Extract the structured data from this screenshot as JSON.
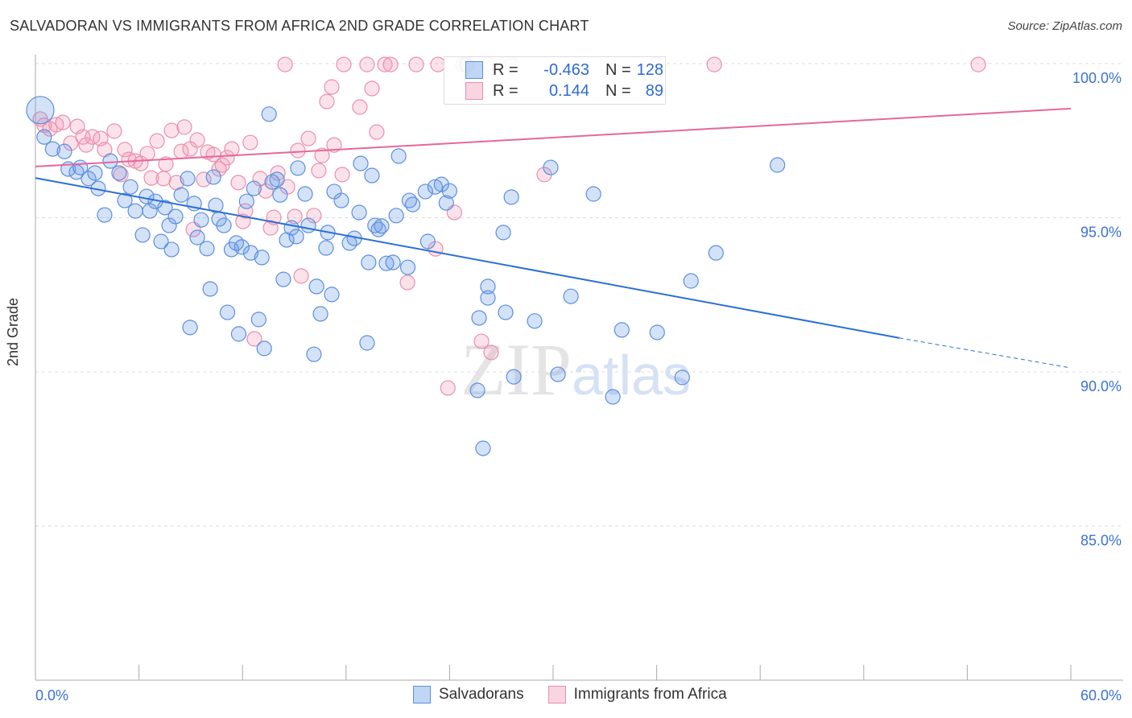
{
  "chart_data": {
    "type": "scatter",
    "title": "SALVADORAN VS IMMIGRANTS FROM AFRICA 2ND GRADE CORRELATION CHART",
    "source": "Source: ZipAtlas.com",
    "xlabel": "",
    "ylabel": "2nd Grade",
    "xlim": [
      0,
      60
    ],
    "ylim": [
      80,
      100.5
    ],
    "x_tick_labels": [
      "0.0%",
      "60.0%"
    ],
    "y_ticks": [
      100,
      95,
      90,
      85
    ],
    "y_tick_labels": [
      "100.0%",
      "95.0%",
      "90.0%",
      "85.0%"
    ],
    "grid": true,
    "watermark": "ZIPatlas",
    "legend": {
      "placement": "top-center",
      "entries": [
        {
          "r_label": "R =",
          "r": "-0.463",
          "n_label": "N =",
          "n": "128"
        },
        {
          "r_label": "R =",
          "r": "0.144",
          "n_label": "N =",
          "n": "89"
        }
      ]
    },
    "colors": {
      "blue": "#5b8fde",
      "pink": "#ea8fac",
      "blue_line": "#2a6fd6",
      "pink_line": "#e8669a",
      "axis_text": "#3a72d4"
    },
    "series": [
      {
        "name": "Salvadorans",
        "trend": {
          "x": [
            0,
            50.07,
            60
          ],
          "y": [
            96.29,
            91.1,
            90.13
          ]
        },
        "points": [
          [
            0.28,
            98.49
          ],
          [
            0.51,
            97.62
          ],
          [
            1.0,
            97.23
          ],
          [
            1.68,
            97.15
          ],
          [
            1.9,
            96.58
          ],
          [
            2.38,
            96.48
          ],
          [
            2.6,
            96.63
          ],
          [
            3.08,
            96.27
          ],
          [
            3.45,
            96.45
          ],
          [
            3.64,
            95.95
          ],
          [
            4.01,
            95.09
          ],
          [
            4.34,
            96.84
          ],
          [
            4.85,
            96.45
          ],
          [
            5.18,
            95.56
          ],
          [
            5.51,
            96.0
          ],
          [
            5.79,
            95.22
          ],
          [
            6.21,
            94.44
          ],
          [
            6.44,
            95.69
          ],
          [
            6.63,
            95.22
          ],
          [
            6.95,
            95.53
          ],
          [
            7.28,
            94.23
          ],
          [
            7.51,
            95.33
          ],
          [
            7.75,
            94.75
          ],
          [
            7.89,
            93.97
          ],
          [
            8.12,
            95.04
          ],
          [
            8.45,
            95.74
          ],
          [
            8.82,
            96.27
          ],
          [
            8.96,
            91.44
          ],
          [
            9.2,
            95.46
          ],
          [
            9.38,
            94.36
          ],
          [
            9.61,
            94.93
          ],
          [
            9.94,
            94.0
          ],
          [
            10.13,
            92.69
          ],
          [
            10.32,
            96.32
          ],
          [
            10.45,
            95.4
          ],
          [
            10.64,
            94.96
          ],
          [
            10.92,
            94.75
          ],
          [
            11.13,
            91.93
          ],
          [
            11.36,
            93.97
          ],
          [
            11.64,
            94.18
          ],
          [
            11.78,
            91.23
          ],
          [
            11.96,
            94.05
          ],
          [
            12.24,
            95.53
          ],
          [
            12.48,
            93.86
          ],
          [
            12.66,
            95.95
          ],
          [
            12.94,
            91.7
          ],
          [
            13.12,
            93.71
          ],
          [
            13.26,
            90.76
          ],
          [
            13.54,
            98.36
          ],
          [
            13.72,
            96.16
          ],
          [
            14.0,
            96.24
          ],
          [
            14.18,
            95.74
          ],
          [
            14.37,
            93.0
          ],
          [
            14.56,
            94.28
          ],
          [
            14.84,
            94.67
          ],
          [
            15.12,
            94.39
          ],
          [
            15.21,
            96.61
          ],
          [
            15.63,
            95.77
          ],
          [
            15.82,
            94.75
          ],
          [
            16.14,
            90.57
          ],
          [
            16.29,
            92.77
          ],
          [
            16.52,
            91.88
          ],
          [
            16.84,
            94.02
          ],
          [
            16.94,
            94.52
          ],
          [
            17.17,
            92.51
          ],
          [
            17.31,
            95.85
          ],
          [
            17.73,
            95.56
          ],
          [
            18.2,
            94.18
          ],
          [
            18.48,
            94.33
          ],
          [
            18.76,
            95.17
          ],
          [
            18.85,
            96.76
          ],
          [
            19.22,
            90.94
          ],
          [
            19.31,
            93.55
          ],
          [
            19.5,
            96.37
          ],
          [
            19.68,
            94.75
          ],
          [
            19.88,
            94.62
          ],
          [
            20.06,
            94.73
          ],
          [
            20.34,
            93.52
          ],
          [
            20.72,
            93.55
          ],
          [
            20.91,
            95.07
          ],
          [
            21.05,
            97.0
          ],
          [
            21.58,
            93.39
          ],
          [
            21.67,
            95.56
          ],
          [
            21.86,
            95.43
          ],
          [
            22.6,
            95.85
          ],
          [
            22.74,
            94.23
          ],
          [
            23.16,
            96.0
          ],
          [
            23.53,
            96.08
          ],
          [
            23.81,
            95.48
          ],
          [
            24.0,
            95.87
          ],
          [
            25.0,
            99.97
          ],
          [
            25.62,
            89.4
          ],
          [
            25.71,
            91.75
          ],
          [
            25.94,
            87.52
          ],
          [
            26.22,
            92.77
          ],
          [
            26.22,
            92.4
          ],
          [
            27.11,
            94.52
          ],
          [
            27.25,
            91.93
          ],
          [
            27.58,
            95.67
          ],
          [
            27.72,
            89.84
          ],
          [
            28.93,
            91.65
          ],
          [
            29.86,
            96.63
          ],
          [
            30.28,
            89.92
          ],
          [
            31.03,
            92.45
          ],
          [
            32.34,
            95.77
          ],
          [
            33.46,
            89.19
          ],
          [
            33.98,
            91.36
          ],
          [
            36.03,
            91.28
          ],
          [
            37.48,
            89.82
          ],
          [
            37.99,
            92.95
          ],
          [
            39.44,
            93.86
          ],
          [
            43.0,
            96.71
          ]
        ]
      },
      {
        "name": "Immigrants from Africa",
        "trend": {
          "x": [
            0,
            60
          ],
          "y": [
            96.66,
            98.54
          ]
        },
        "points": [
          [
            0.28,
            98.2
          ],
          [
            0.51,
            98.0
          ],
          [
            0.84,
            97.88
          ],
          [
            1.21,
            98.02
          ],
          [
            1.59,
            98.09
          ],
          [
            2.05,
            97.42
          ],
          [
            2.43,
            97.96
          ],
          [
            2.75,
            97.62
          ],
          [
            2.94,
            97.36
          ],
          [
            3.31,
            97.62
          ],
          [
            3.78,
            97.57
          ],
          [
            4.01,
            97.21
          ],
          [
            4.57,
            97.81
          ],
          [
            4.95,
            96.4
          ],
          [
            5.18,
            97.21
          ],
          [
            5.41,
            96.89
          ],
          [
            5.79,
            96.84
          ],
          [
            6.11,
            96.76
          ],
          [
            6.49,
            97.08
          ],
          [
            6.72,
            96.29
          ],
          [
            7.05,
            97.49
          ],
          [
            7.42,
            96.27
          ],
          [
            7.56,
            96.74
          ],
          [
            7.89,
            97.83
          ],
          [
            8.17,
            96.14
          ],
          [
            8.45,
            97.15
          ],
          [
            8.63,
            97.94
          ],
          [
            8.96,
            97.23
          ],
          [
            9.15,
            94.62
          ],
          [
            9.38,
            97.52
          ],
          [
            9.75,
            96.24
          ],
          [
            9.98,
            97.13
          ],
          [
            10.32,
            97.05
          ],
          [
            10.64,
            96.58
          ],
          [
            10.83,
            96.71
          ],
          [
            11.11,
            96.95
          ],
          [
            11.38,
            97.23
          ],
          [
            11.76,
            96.14
          ],
          [
            12.03,
            94.88
          ],
          [
            12.17,
            95.22
          ],
          [
            12.45,
            97.44
          ],
          [
            12.69,
            91.07
          ],
          [
            13.02,
            96.27
          ],
          [
            13.35,
            95.87
          ],
          [
            13.63,
            94.67
          ],
          [
            13.81,
            95.01
          ],
          [
            14.05,
            96.45
          ],
          [
            14.47,
            99.97
          ],
          [
            14.61,
            96.0
          ],
          [
            15.03,
            95.04
          ],
          [
            15.21,
            97.18
          ],
          [
            15.4,
            93.11
          ],
          [
            15.82,
            97.57
          ],
          [
            16.14,
            95.07
          ],
          [
            16.42,
            96.53
          ],
          [
            16.61,
            97.02
          ],
          [
            16.89,
            98.77
          ],
          [
            17.17,
            99.24
          ],
          [
            17.31,
            97.36
          ],
          [
            17.78,
            96.4
          ],
          [
            17.87,
            99.97
          ],
          [
            18.8,
            98.59
          ],
          [
            19.22,
            99.97
          ],
          [
            19.5,
            99.19
          ],
          [
            19.78,
            97.78
          ],
          [
            20.25,
            99.97
          ],
          [
            20.58,
            99.97
          ],
          [
            21.56,
            92.9
          ],
          [
            22.07,
            99.97
          ],
          [
            23.19,
            93.99
          ],
          [
            23.33,
            99.97
          ],
          [
            23.9,
            89.48
          ],
          [
            24.28,
            95.17
          ],
          [
            24.78,
            99.97
          ],
          [
            25.85,
            90.99
          ],
          [
            26.3,
            99.97
          ],
          [
            26.41,
            90.63
          ],
          [
            27.6,
            99.97
          ],
          [
            29.49,
            96.4
          ],
          [
            35.98,
            99.97
          ],
          [
            39.34,
            99.97
          ],
          [
            54.64,
            99.97
          ]
        ]
      }
    ]
  }
}
